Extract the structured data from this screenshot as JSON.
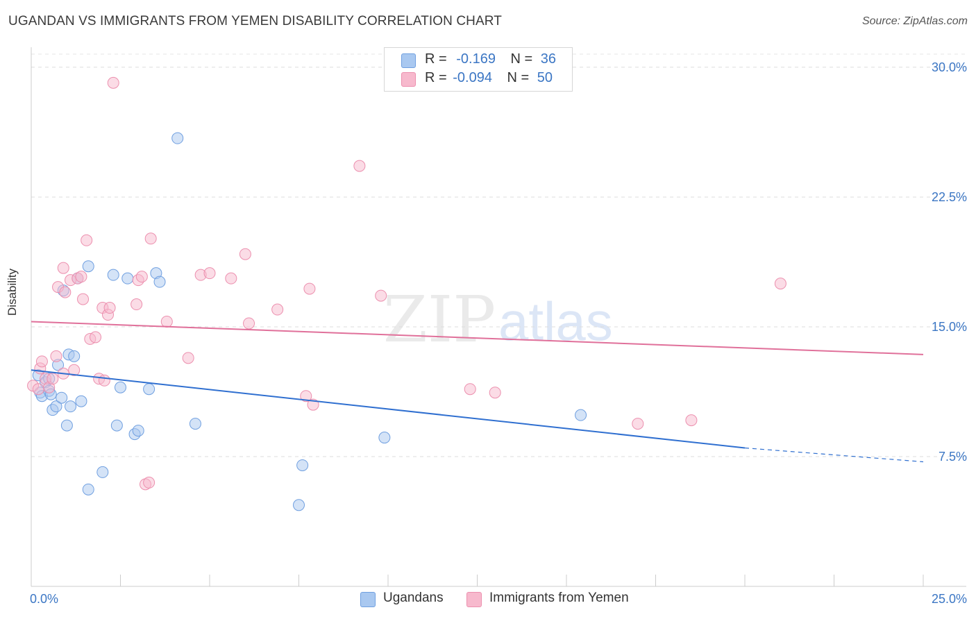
{
  "title": "UGANDAN VS IMMIGRANTS FROM YEMEN DISABILITY CORRELATION CHART",
  "source": "Source: ZipAtlas.com",
  "watermark": {
    "zip": "ZIP",
    "atlas": "atlas"
  },
  "legend": {
    "r_label": "R =",
    "n_label": "N =",
    "rows": [
      {
        "name": "Ugandans",
        "r": "-0.169",
        "n": "36",
        "color": "#a9c8f0",
        "stroke": "#6f9fe0"
      },
      {
        "name": "Immigrants from Yemen",
        "r": "-0.094",
        "n": "50",
        "color": "#f7b9cd",
        "stroke": "#ec8fae"
      }
    ]
  },
  "bottom_legend": [
    "Ugandans",
    "Immigrants from Yemen"
  ],
  "chart_data": {
    "type": "scatter",
    "title": "UGANDAN VS IMMIGRANTS FROM YEMEN DISABILITY CORRELATION CHART",
    "xlabel": "",
    "ylabel": "Disability",
    "xlim": [
      0,
      25
    ],
    "ylim": [
      0,
      31
    ],
    "x_tick_labels": [
      "0.0%",
      "25.0%"
    ],
    "y_ticks": [
      7.5,
      15.0,
      22.5,
      30.0
    ],
    "y_tick_labels": [
      "7.5%",
      "15.0%",
      "22.5%",
      "30.0%"
    ],
    "grid": true,
    "series": [
      {
        "name": "Ugandans",
        "color": "#6f9fe0",
        "fill": "#a9c8f0",
        "line_color": "#2f6fd0",
        "trend": {
          "x": [
            0,
            20
          ],
          "y": [
            12.5,
            8.0
          ],
          "dashed_to": [
            25,
            7.2
          ]
        },
        "points": [
          [
            0.2,
            12.2
          ],
          [
            0.25,
            11.2
          ],
          [
            0.3,
            11.0
          ],
          [
            0.4,
            11.8
          ],
          [
            0.5,
            12.0
          ],
          [
            0.5,
            11.3
          ],
          [
            0.55,
            11.1
          ],
          [
            0.6,
            10.2
          ],
          [
            0.7,
            10.4
          ],
          [
            0.75,
            12.8
          ],
          [
            0.85,
            10.9
          ],
          [
            0.9,
            17.1
          ],
          [
            1.0,
            9.3
          ],
          [
            1.05,
            13.4
          ],
          [
            1.1,
            10.4
          ],
          [
            1.2,
            13.3
          ],
          [
            1.3,
            17.8
          ],
          [
            1.4,
            10.7
          ],
          [
            1.6,
            18.5
          ],
          [
            1.6,
            5.6
          ],
          [
            2.0,
            6.6
          ],
          [
            2.3,
            18.0
          ],
          [
            2.4,
            9.3
          ],
          [
            2.5,
            11.5
          ],
          [
            2.7,
            17.8
          ],
          [
            2.9,
            8.8
          ],
          [
            3.0,
            9.0
          ],
          [
            3.3,
            11.4
          ],
          [
            3.5,
            18.1
          ],
          [
            3.6,
            17.6
          ],
          [
            4.1,
            25.9
          ],
          [
            4.6,
            9.4
          ],
          [
            7.5,
            4.7
          ],
          [
            7.6,
            7.0
          ],
          [
            9.9,
            8.6
          ],
          [
            15.4,
            9.9
          ]
        ]
      },
      {
        "name": "Immigrants from Yemen",
        "color": "#ec8fae",
        "fill": "#f7b9cd",
        "line_color": "#e0709a",
        "trend": {
          "x": [
            0,
            25
          ],
          "y": [
            15.3,
            13.4
          ]
        },
        "points": [
          [
            0.05,
            11.6
          ],
          [
            0.2,
            11.4
          ],
          [
            0.25,
            12.6
          ],
          [
            0.3,
            13.0
          ],
          [
            0.4,
            12.0
          ],
          [
            0.5,
            11.5
          ],
          [
            0.6,
            12.0
          ],
          [
            0.7,
            13.3
          ],
          [
            0.75,
            17.3
          ],
          [
            0.9,
            18.4
          ],
          [
            0.9,
            12.3
          ],
          [
            0.95,
            17.0
          ],
          [
            1.1,
            17.7
          ],
          [
            1.2,
            12.5
          ],
          [
            1.3,
            17.8
          ],
          [
            1.4,
            17.9
          ],
          [
            1.45,
            16.6
          ],
          [
            1.55,
            20.0
          ],
          [
            1.65,
            14.3
          ],
          [
            1.8,
            14.4
          ],
          [
            1.9,
            12.0
          ],
          [
            2.0,
            16.1
          ],
          [
            2.05,
            11.9
          ],
          [
            2.15,
            15.7
          ],
          [
            2.2,
            16.1
          ],
          [
            2.3,
            29.1
          ],
          [
            2.95,
            16.3
          ],
          [
            3.0,
            17.7
          ],
          [
            3.1,
            17.9
          ],
          [
            3.2,
            5.9
          ],
          [
            3.3,
            6.0
          ],
          [
            3.35,
            20.1
          ],
          [
            3.8,
            15.3
          ],
          [
            4.4,
            13.2
          ],
          [
            4.75,
            18.0
          ],
          [
            5.0,
            18.1
          ],
          [
            5.6,
            17.8
          ],
          [
            6.0,
            19.2
          ],
          [
            6.1,
            15.2
          ],
          [
            6.9,
            16.0
          ],
          [
            7.7,
            11.0
          ],
          [
            7.8,
            17.2
          ],
          [
            7.9,
            10.5
          ],
          [
            9.2,
            24.3
          ],
          [
            9.8,
            16.8
          ],
          [
            12.3,
            11.4
          ],
          [
            13.0,
            11.2
          ],
          [
            17.0,
            9.4
          ],
          [
            18.5,
            9.6
          ],
          [
            21.0,
            17.5
          ]
        ]
      }
    ]
  }
}
